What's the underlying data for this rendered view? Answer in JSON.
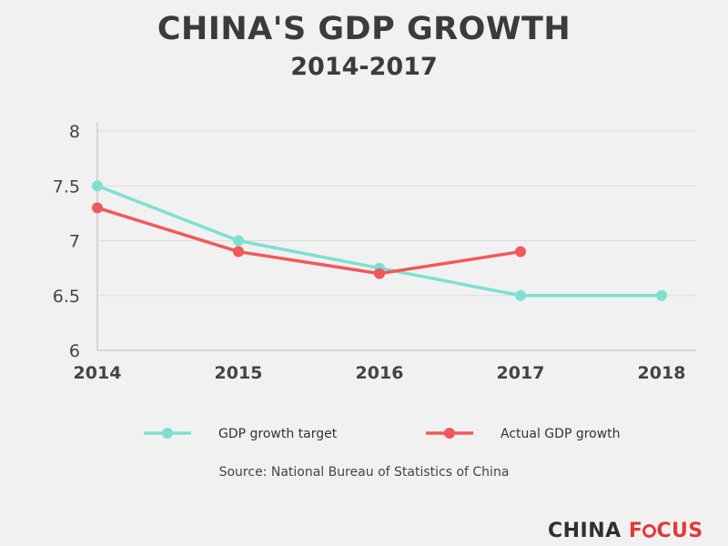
{
  "chart_data": {
    "type": "line",
    "title": "CHINA'S GDP GROWTH",
    "subtitle": "2014-2017",
    "x": [
      "2014",
      "2015",
      "2016",
      "2017",
      "2018"
    ],
    "yticks": [
      "6",
      "6.5",
      "7",
      "7.5",
      "8"
    ],
    "ylim": [
      6,
      8
    ],
    "grid": true,
    "legend_position": "bottom",
    "series": [
      {
        "name": "GDP growth target",
        "color": "#7fe0cf",
        "values": [
          7.5,
          7.0,
          6.75,
          6.5,
          6.5
        ]
      },
      {
        "name": "Actual GDP growth",
        "color": "#f0595a",
        "values": [
          7.3,
          6.9,
          6.7,
          6.9,
          null
        ]
      }
    ],
    "source": "Source: National Bureau of Statistics of China"
  },
  "logo": {
    "part1": "CHINA",
    "part2": "FOCUS"
  }
}
